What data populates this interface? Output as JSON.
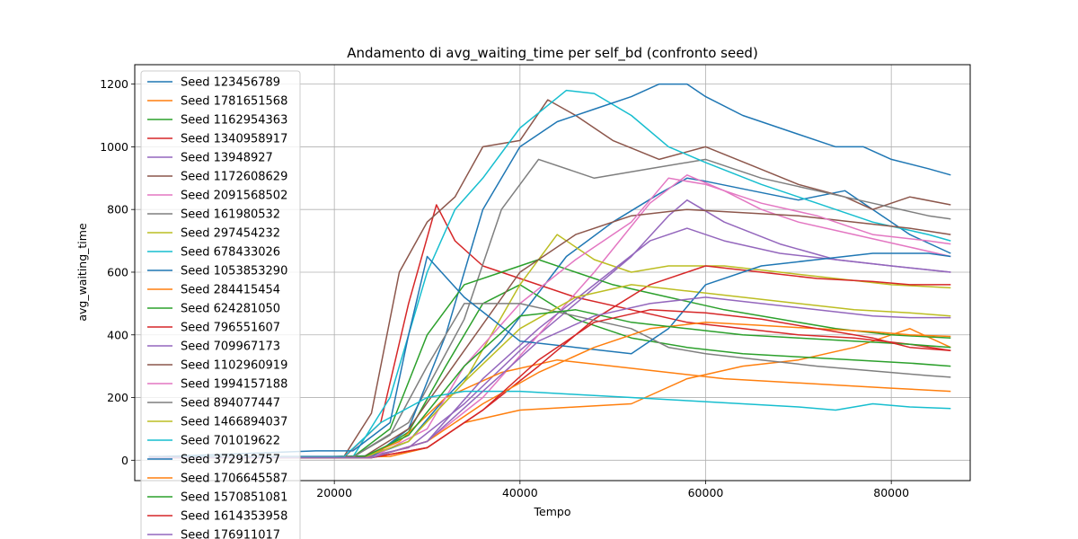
{
  "chart_data": {
    "type": "line",
    "title": "Andamento di avg_waiting_time per self_bd (confronto seed)",
    "xlabel": "Tempo",
    "ylabel": "avg_waiting_time",
    "xlim": [
      -1500,
      88500
    ],
    "ylim": [
      -65,
      1262
    ],
    "xticks": [
      20000,
      40000,
      60000,
      80000
    ],
    "yticks": [
      0,
      200,
      400,
      600,
      800,
      1000,
      1200
    ],
    "grid": true,
    "legend_position": "upper-left",
    "series": [
      {
        "name": "Seed 123456789",
        "color": "#1f77b4",
        "x": [
          0,
          20000,
          24000,
          28000,
          32000,
          38000,
          45000,
          50000,
          55000,
          58000,
          60000,
          65000,
          70000,
          75000,
          78000,
          82000,
          86400
        ],
        "y": [
          12,
          12,
          14,
          60,
          200,
          380,
          650,
          760,
          850,
          900,
          890,
          860,
          830,
          860,
          800,
          720,
          660
        ]
      },
      {
        "name": "Seed 1781651568",
        "color": "#ff7f0e",
        "x": [
          0,
          22000,
          26000,
          30000,
          34000,
          40000,
          46000,
          52000,
          58000,
          64000,
          70000,
          76000,
          82000,
          86400
        ],
        "y": [
          10,
          10,
          12,
          40,
          120,
          160,
          170,
          180,
          260,
          300,
          320,
          360,
          420,
          360
        ]
      },
      {
        "name": "Seed 1162954363",
        "color": "#2ca02c",
        "x": [
          0,
          20000,
          24000,
          28000,
          32000,
          36000,
          40000,
          46000,
          52000,
          58000,
          64000,
          70000,
          76000,
          82000,
          86400
        ],
        "y": [
          10,
          10,
          14,
          90,
          300,
          500,
          560,
          450,
          390,
          360,
          340,
          330,
          320,
          310,
          300
        ]
      },
      {
        "name": "Seed 1340958917",
        "color": "#d62728",
        "x": [
          0,
          21000,
          25000,
          28000,
          31000,
          33000,
          36000,
          40000,
          46000,
          52000,
          58000,
          64000,
          70000,
          76000,
          82000,
          86400
        ],
        "y": [
          8,
          8,
          120,
          500,
          815,
          700,
          620,
          580,
          520,
          480,
          440,
          420,
          400,
          390,
          370,
          350
        ]
      },
      {
        "name": "Seed 13948927",
        "color": "#9467bd",
        "x": [
          0,
          23000,
          28000,
          34000,
          40000,
          46000,
          52000,
          56000,
          58000,
          62000,
          68000,
          74000,
          80000,
          86400
        ],
        "y": [
          8,
          8,
          40,
          180,
          350,
          500,
          650,
          780,
          830,
          760,
          690,
          640,
          620,
          600
        ]
      },
      {
        "name": "Seed 1172608629",
        "color": "#8c564b",
        "x": [
          0,
          21000,
          24000,
          27000,
          30000,
          33000,
          36000,
          40000,
          43000,
          46000,
          50000,
          55000,
          60000,
          65000,
          70000,
          75000,
          78000,
          82000,
          86400
        ],
        "y": [
          10,
          10,
          150,
          600,
          760,
          840,
          1000,
          1020,
          1150,
          1100,
          1020,
          960,
          1000,
          940,
          880,
          840,
          800,
          840,
          815
        ]
      },
      {
        "name": "Seed 2091568502",
        "color": "#e377c2",
        "x": [
          0,
          24000,
          30000,
          36000,
          42000,
          48000,
          54000,
          58000,
          62000,
          66000,
          70000,
          76000,
          82000,
          86400
        ],
        "y": [
          8,
          8,
          60,
          200,
          400,
          600,
          820,
          910,
          860,
          800,
          760,
          720,
          680,
          650
        ]
      },
      {
        "name": "Seed 161980532",
        "color": "#7f7f7f",
        "x": [
          0,
          22000,
          28000,
          34000,
          38000,
          42000,
          48000,
          54000,
          60000,
          66000,
          72000,
          78000,
          84000,
          86400
        ],
        "y": [
          10,
          10,
          120,
          450,
          800,
          960,
          900,
          930,
          960,
          900,
          860,
          820,
          780,
          770
        ]
      },
      {
        "name": "Seed 297454232",
        "color": "#bcbd22",
        "x": [
          0,
          23000,
          28000,
          34000,
          40000,
          44000,
          48000,
          52000,
          56000,
          62000,
          68000,
          74000,
          80000,
          86400
        ],
        "y": [
          8,
          8,
          60,
          250,
          560,
          720,
          640,
          600,
          620,
          620,
          600,
          580,
          560,
          550
        ]
      },
      {
        "name": "Seed 678433026",
        "color": "#17becf",
        "x": [
          0,
          22000,
          26000,
          30000,
          33000,
          36000,
          40000,
          45000,
          48000,
          52000,
          56000,
          60000,
          66000,
          72000,
          78000,
          84000,
          86400
        ],
        "y": [
          10,
          10,
          200,
          600,
          800,
          900,
          1060,
          1180,
          1170,
          1100,
          1000,
          950,
          880,
          820,
          760,
          720,
          700
        ]
      },
      {
        "name": "Seed 1053853290",
        "color": "#1f77b4",
        "x": [
          0,
          24000,
          28000,
          32000,
          36000,
          40000,
          44000,
          48000,
          52000,
          55000,
          58000,
          60000,
          64000,
          70000,
          74000,
          77000,
          80000,
          84000,
          86400
        ],
        "y": [
          8,
          8,
          100,
          400,
          800,
          1000,
          1080,
          1120,
          1160,
          1200,
          1200,
          1160,
          1100,
          1040,
          1000,
          1000,
          960,
          930,
          910
        ]
      },
      {
        "name": "Seed 284415454",
        "color": "#ff7f0e",
        "x": [
          0,
          23000,
          27000,
          32000,
          38000,
          44000,
          50000,
          56000,
          62000,
          68000,
          74000,
          80000,
          86400
        ],
        "y": [
          8,
          8,
          60,
          200,
          280,
          320,
          300,
          280,
          260,
          250,
          240,
          230,
          220
        ]
      },
      {
        "name": "Seed 624281050",
        "color": "#2ca02c",
        "x": [
          0,
          22000,
          26000,
          30000,
          34000,
          38000,
          42000,
          46000,
          50000,
          56000,
          62000,
          68000,
          74000,
          80000,
          86400
        ],
        "y": [
          10,
          10,
          100,
          400,
          560,
          600,
          640,
          600,
          560,
          520,
          480,
          450,
          420,
          400,
          390
        ]
      },
      {
        "name": "Seed 796551607",
        "color": "#d62728",
        "x": [
          0,
          24000,
          30000,
          36000,
          42000,
          48000,
          54000,
          60000,
          66000,
          72000,
          78000,
          82000,
          86400
        ],
        "y": [
          8,
          8,
          40,
          160,
          300,
          450,
          560,
          620,
          600,
          580,
          570,
          560,
          560
        ]
      },
      {
        "name": "Seed 709967173",
        "color": "#9467bd",
        "x": [
          0,
          24000,
          30000,
          36000,
          42000,
          48000,
          54000,
          58000,
          62000,
          68000,
          74000,
          80000,
          86400
        ],
        "y": [
          8,
          8,
          60,
          260,
          420,
          560,
          700,
          740,
          700,
          660,
          640,
          620,
          600
        ]
      },
      {
        "name": "Seed 1102960919",
        "color": "#8c564b",
        "x": [
          0,
          23000,
          28000,
          34000,
          40000,
          46000,
          52000,
          58000,
          64000,
          70000,
          76000,
          82000,
          86400
        ],
        "y": [
          8,
          8,
          100,
          350,
          600,
          720,
          780,
          800,
          790,
          780,
          760,
          740,
          720
        ]
      },
      {
        "name": "Seed 1994157188",
        "color": "#e377c2",
        "x": [
          0,
          24000,
          30000,
          34000,
          40000,
          46000,
          52000,
          56000,
          60000,
          66000,
          72000,
          78000,
          84000,
          86400
        ],
        "y": [
          8,
          8,
          100,
          300,
          500,
          640,
          760,
          900,
          880,
          820,
          780,
          720,
          700,
          690
        ]
      },
      {
        "name": "Seed 894077447",
        "color": "#7f7f7f",
        "x": [
          0,
          22000,
          26000,
          30000,
          34000,
          40000,
          46000,
          52000,
          56000,
          60000,
          66000,
          72000,
          78000,
          84000,
          86400
        ],
        "y": [
          10,
          10,
          80,
          300,
          500,
          500,
          460,
          420,
          360,
          340,
          320,
          300,
          285,
          270,
          265
        ]
      },
      {
        "name": "Seed 1466894037",
        "color": "#bcbd22",
        "x": [
          0,
          23000,
          28000,
          34000,
          40000,
          46000,
          52000,
          58000,
          64000,
          70000,
          76000,
          82000,
          86400
        ],
        "y": [
          8,
          8,
          60,
          250,
          420,
          520,
          560,
          540,
          520,
          500,
          480,
          470,
          460
        ]
      },
      {
        "name": "Seed 701019622",
        "color": "#17becf",
        "x": [
          0,
          21000,
          25000,
          30000,
          34000,
          40000,
          46000,
          52000,
          58000,
          64000,
          70000,
          74000,
          78000,
          82000,
          86400
        ],
        "y": [
          10,
          10,
          120,
          200,
          220,
          220,
          210,
          200,
          190,
          180,
          170,
          160,
          180,
          170,
          165
        ]
      },
      {
        "name": "Seed 372912757",
        "color": "#1f77b4",
        "x": [
          0,
          18000,
          22000,
          26000,
          28000,
          30000,
          34000,
          40000,
          46000,
          52000,
          56000,
          60000,
          66000,
          72000,
          78000,
          84000,
          86400
        ],
        "y": [
          10,
          30,
          30,
          120,
          400,
          650,
          520,
          380,
          360,
          340,
          420,
          560,
          620,
          640,
          660,
          660,
          650
        ]
      },
      {
        "name": "Seed 1706645587",
        "color": "#ff7f0e",
        "x": [
          0,
          24000,
          30000,
          36000,
          42000,
          48000,
          54000,
          60000,
          66000,
          72000,
          78000,
          82000,
          86400
        ],
        "y": [
          8,
          8,
          60,
          180,
          280,
          360,
          420,
          440,
          430,
          420,
          410,
          400,
          395
        ]
      },
      {
        "name": "Seed 1570851081",
        "color": "#2ca02c",
        "x": [
          0,
          23000,
          28000,
          34000,
          40000,
          46000,
          52000,
          58000,
          64000,
          70000,
          76000,
          82000,
          86400
        ],
        "y": [
          8,
          8,
          80,
          300,
          460,
          480,
          440,
          420,
          400,
          390,
          380,
          370,
          360
        ]
      },
      {
        "name": "Seed 1614353958",
        "color": "#d62728",
        "x": [
          0,
          24000,
          30000,
          36000,
          42000,
          48000,
          54000,
          60000,
          66000,
          72000,
          78000,
          82000,
          86400
        ],
        "y": [
          8,
          8,
          40,
          160,
          320,
          440,
          480,
          470,
          450,
          420,
          390,
          360,
          350
        ]
      },
      {
        "name": "Seed 176911017",
        "color": "#9467bd",
        "x": [
          0,
          24000,
          30000,
          36000,
          42000,
          48000,
          54000,
          60000,
          66000,
          72000,
          78000,
          82000,
          86400
        ],
        "y": [
          8,
          8,
          60,
          220,
          380,
          460,
          500,
          520,
          500,
          480,
          460,
          455,
          455
        ]
      }
    ]
  }
}
